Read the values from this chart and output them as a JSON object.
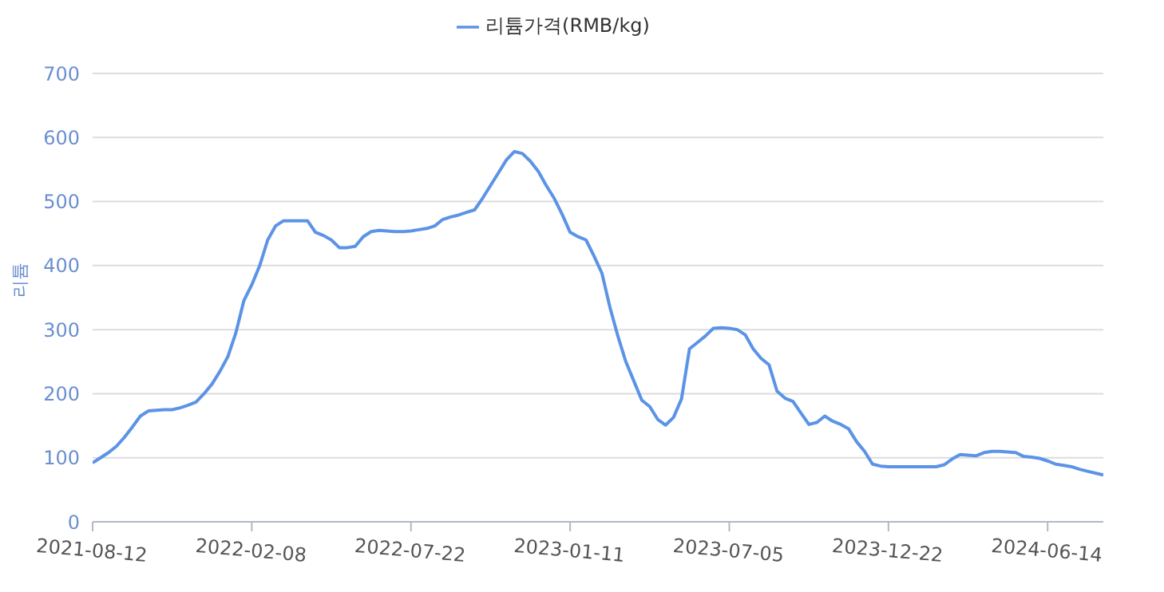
{
  "chart_data": {
    "type": "line",
    "ylabel": "리튬",
    "categories": [
      "2021-08-12",
      null,
      null,
      null,
      null,
      null,
      null,
      null,
      null,
      null,
      null,
      null,
      null,
      null,
      null,
      null,
      null,
      null,
      null,
      null,
      "2022-02-08",
      null,
      null,
      null,
      null,
      null,
      null,
      null,
      null,
      null,
      null,
      null,
      null,
      null,
      null,
      null,
      null,
      null,
      null,
      null,
      "2022-07-22",
      null,
      null,
      null,
      null,
      null,
      null,
      null,
      null,
      null,
      null,
      null,
      null,
      null,
      null,
      null,
      null,
      null,
      null,
      null,
      "2023-01-11",
      null,
      null,
      null,
      null,
      null,
      null,
      null,
      null,
      null,
      null,
      null,
      null,
      null,
      null,
      null,
      null,
      null,
      null,
      null,
      "2023-07-05",
      null,
      null,
      null,
      null,
      null,
      null,
      null,
      null,
      null,
      null,
      null,
      null,
      null,
      null,
      null,
      null,
      null,
      null,
      null,
      "2023-12-22",
      null,
      null,
      null,
      null,
      null,
      null,
      null,
      null,
      null,
      null,
      null,
      null,
      null,
      null,
      null,
      null,
      null,
      null,
      null,
      "2024-06-14",
      null,
      null,
      null,
      null,
      null,
      null,
      null
    ],
    "series": [
      {
        "name": "리튬가격(RMB/kg)",
        "color": "#5b93e6",
        "values": [
          92,
          100,
          108,
          118,
          132,
          148,
          165,
          173,
          174,
          175,
          175,
          178,
          182,
          187,
          200,
          215,
          235,
          258,
          295,
          345,
          370,
          400,
          440,
          462,
          470,
          470,
          470,
          470,
          452,
          447,
          440,
          428,
          428,
          430,
          445,
          453,
          455,
          454,
          453,
          453,
          454,
          456,
          458,
          462,
          472,
          476,
          479,
          483,
          487,
          505,
          525,
          545,
          565,
          578,
          575,
          563,
          547,
          525,
          505,
          480,
          452,
          445,
          440,
          415,
          388,
          335,
          290,
          250,
          220,
          190,
          180,
          160,
          151,
          163,
          192,
          270,
          280,
          290,
          302,
          303,
          302,
          300,
          292,
          270,
          255,
          245,
          204,
          193,
          188,
          170,
          152,
          155,
          165,
          157,
          152,
          145,
          125,
          110,
          90,
          87,
          86,
          86,
          86,
          86,
          86,
          86,
          86,
          89,
          98,
          105,
          104,
          103,
          108,
          110,
          110,
          109,
          108,
          102,
          101,
          99,
          95,
          90,
          88,
          86,
          82,
          79,
          76,
          73
        ]
      }
    ],
    "ylim": [
      0,
      700
    ],
    "yticks": [
      0,
      100,
      200,
      300,
      400,
      500,
      600,
      700
    ],
    "grid": "y",
    "legend": "top",
    "marker": "none",
    "line_style": "solid"
  }
}
